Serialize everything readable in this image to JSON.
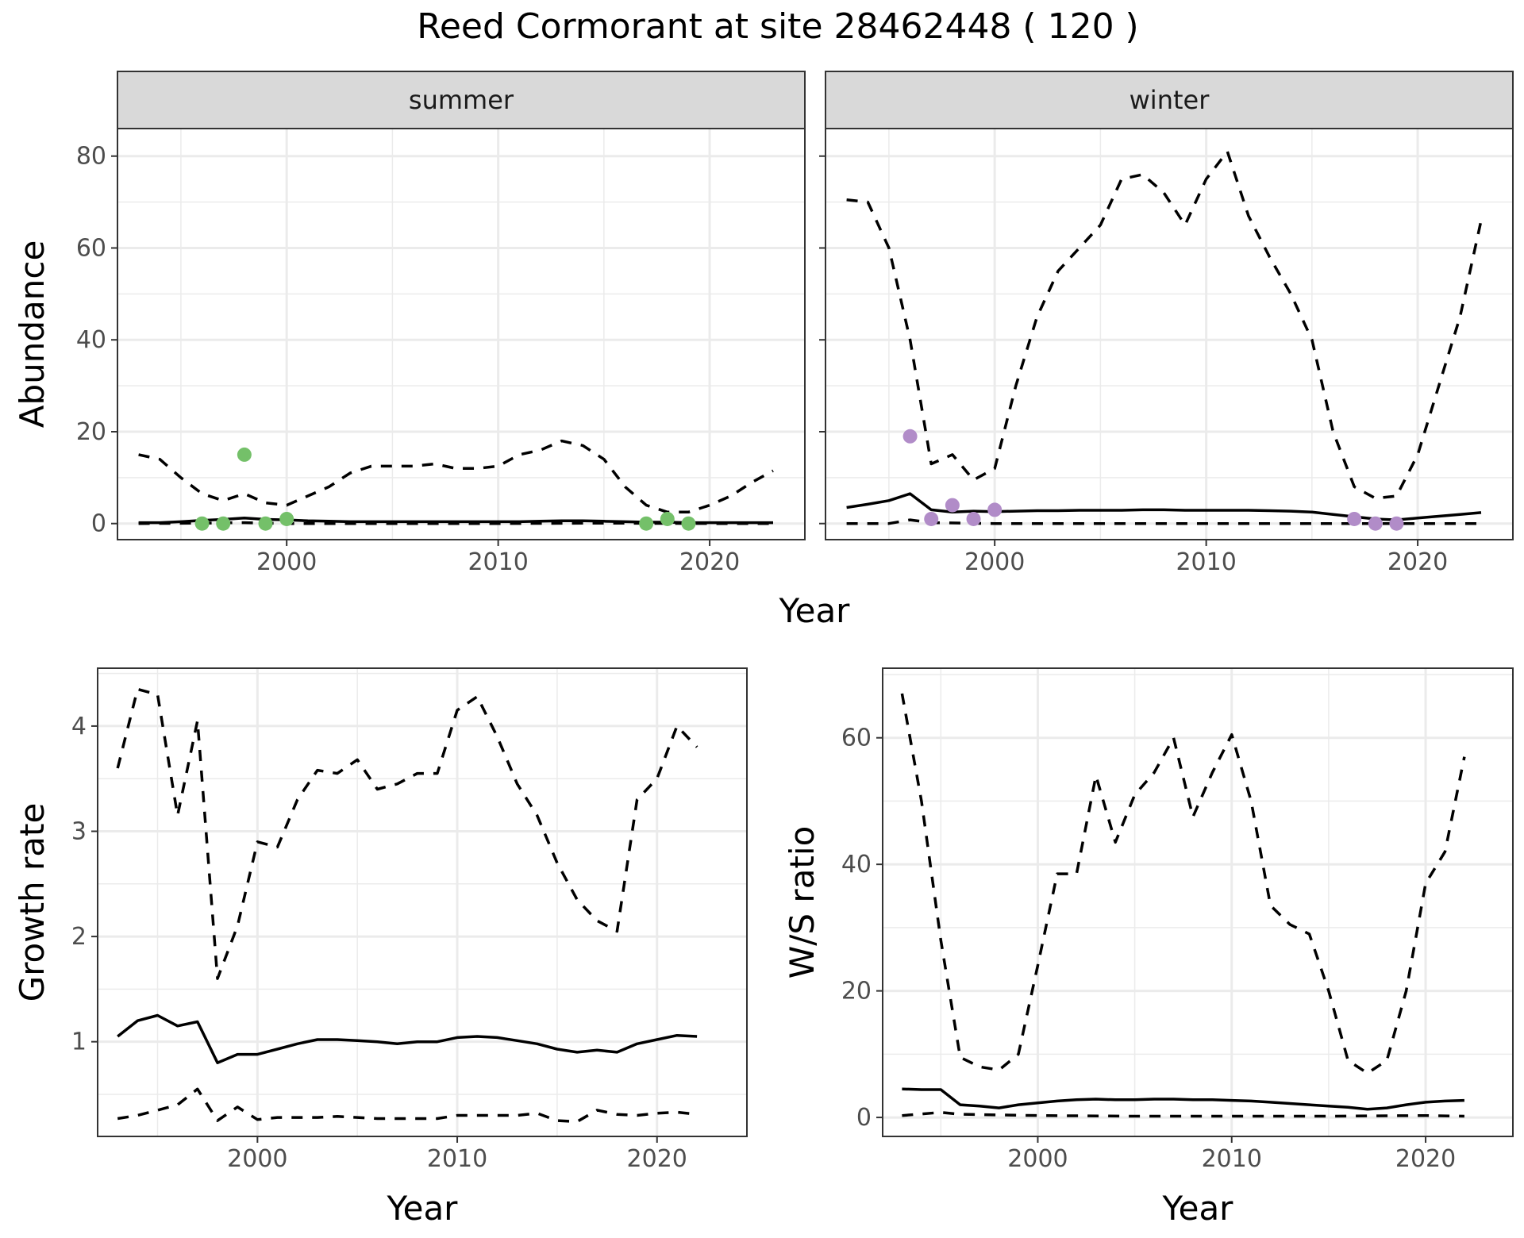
{
  "title": "Reed Cormorant at site 28462448 ( 120 )",
  "colors": {
    "summer_points": "#74c069",
    "winter_points": "#b18cc8",
    "lines": "#000000"
  },
  "chart_data": [
    {
      "type": "line",
      "facet": "summer",
      "xlabel": "Year",
      "ylabel": "Abundance",
      "xlim": [
        1992,
        2024.5
      ],
      "ylim": [
        -3.5,
        86
      ],
      "xticks": [
        2000,
        2010,
        2020
      ],
      "yticks": [
        0,
        20,
        40,
        60,
        80
      ],
      "grid": true,
      "series": [
        {
          "style": "solid",
          "x": [
            1993,
            1994,
            1995,
            1996,
            1997,
            1998,
            1999,
            2000,
            2001,
            2002,
            2003,
            2004,
            2005,
            2006,
            2007,
            2008,
            2009,
            2010,
            2011,
            2012,
            2013,
            2014,
            2015,
            2016,
            2017,
            2018,
            2019,
            2020,
            2021,
            2022,
            2023
          ],
          "y": [
            0.2,
            0.2,
            0.4,
            0.7,
            0.9,
            1.2,
            0.9,
            0.8,
            0.6,
            0.5,
            0.4,
            0.4,
            0.4,
            0.4,
            0.4,
            0.4,
            0.4,
            0.4,
            0.4,
            0.5,
            0.6,
            0.6,
            0.5,
            0.4,
            0.3,
            0.3,
            0.2,
            0.2,
            0.2,
            0.2,
            0.2
          ]
        },
        {
          "style": "dashed",
          "x": [
            1993,
            1994,
            1995,
            1996,
            1997,
            1998,
            1999,
            2000,
            2001,
            2002,
            2003,
            2004,
            2005,
            2006,
            2007,
            2008,
            2009,
            2010,
            2011,
            2012,
            2013,
            2014,
            2015,
            2016,
            2017,
            2018,
            2019,
            2020,
            2021,
            2022,
            2023
          ],
          "y": [
            15,
            14,
            10,
            6.5,
            5,
            6.5,
            4.5,
            4,
            6,
            8,
            11,
            12.5,
            12.5,
            12.5,
            13,
            12,
            12,
            12.5,
            15,
            16,
            18,
            17,
            14,
            8,
            4,
            2.5,
            2.5,
            4,
            6,
            9,
            11.5
          ]
        },
        {
          "style": "dashed",
          "x": [
            1993,
            1996,
            1998,
            2000,
            2005,
            2010,
            2015,
            2020,
            2023
          ],
          "y": [
            0,
            0.1,
            0.2,
            0,
            0,
            0,
            0.1,
            0,
            0
          ]
        }
      ],
      "points": {
        "x": [
          1996,
          1997,
          1998,
          1999,
          2000,
          2017,
          2018,
          2019
        ],
        "y": [
          0,
          0,
          15,
          0,
          1,
          0,
          1,
          0
        ]
      }
    },
    {
      "type": "line",
      "facet": "winter",
      "xlabel": "Year",
      "ylabel": "Abundance",
      "xlim": [
        1992,
        2024.5
      ],
      "ylim": [
        -3.5,
        86
      ],
      "xticks": [
        2000,
        2010,
        2020
      ],
      "yticks": [
        0,
        20,
        40,
        60,
        80
      ],
      "grid": true,
      "series": [
        {
          "style": "solid",
          "x": [
            1993,
            1994,
            1995,
            1996,
            1997,
            1998,
            1999,
            2000,
            2001,
            2002,
            2003,
            2004,
            2005,
            2006,
            2007,
            2008,
            2009,
            2010,
            2011,
            2012,
            2013,
            2014,
            2015,
            2016,
            2017,
            2018,
            2019,
            2020,
            2021,
            2022,
            2023
          ],
          "y": [
            3.5,
            4.2,
            5,
            6.5,
            3,
            2.5,
            2.7,
            2.6,
            2.7,
            2.8,
            2.8,
            2.9,
            2.9,
            2.9,
            3,
            3,
            2.9,
            2.9,
            2.9,
            2.9,
            2.8,
            2.7,
            2.5,
            2,
            1.5,
            1,
            0.8,
            1.2,
            1.6,
            2,
            2.4
          ]
        },
        {
          "style": "dashed",
          "x": [
            1993,
            1994,
            1995,
            1996,
            1997,
            1998,
            1999,
            2000,
            2001,
            2002,
            2003,
            2004,
            2005,
            2006,
            2007,
            2008,
            2009,
            2010,
            2011,
            2012,
            2013,
            2014,
            2015,
            2016,
            2017,
            2018,
            2019,
            2020,
            2021,
            2022,
            2023
          ],
          "y": [
            70.5,
            70,
            60,
            40,
            13,
            15,
            9.5,
            12,
            30,
            45,
            55,
            60,
            65,
            75,
            76,
            72,
            65,
            75,
            81,
            67,
            58,
            50,
            40,
            20,
            8,
            5.5,
            6,
            15,
            30,
            45,
            66
          ]
        },
        {
          "style": "dashed",
          "x": [
            1993,
            1995,
            1996,
            1997,
            2000,
            2010,
            2020,
            2023
          ],
          "y": [
            0,
            0,
            0.8,
            0.2,
            0,
            0,
            0,
            0
          ]
        }
      ],
      "points": {
        "x": [
          1996,
          1997,
          1998,
          1999,
          2000,
          2017,
          2018,
          2019
        ],
        "y": [
          19,
          1,
          4,
          1,
          3,
          1,
          0,
          0
        ]
      }
    },
    {
      "type": "line",
      "xlabel": "Year",
      "ylabel": "Growth rate",
      "xlim": [
        1992,
        2024.5
      ],
      "ylim": [
        0.1,
        4.55
      ],
      "xticks": [
        2000,
        2010,
        2020
      ],
      "yticks": [
        1,
        2,
        3,
        4
      ],
      "grid": true,
      "series": [
        {
          "style": "solid",
          "x": [
            1993,
            1994,
            1995,
            1996,
            1997,
            1998,
            1999,
            2000,
            2001,
            2002,
            2003,
            2004,
            2005,
            2006,
            2007,
            2008,
            2009,
            2010,
            2011,
            2012,
            2013,
            2014,
            2015,
            2016,
            2017,
            2018,
            2019,
            2020,
            2021,
            2022
          ],
          "y": [
            1.05,
            1.2,
            1.25,
            1.15,
            1.19,
            0.8,
            0.88,
            0.88,
            0.93,
            0.98,
            1.02,
            1.02,
            1.01,
            1,
            0.98,
            1,
            1,
            1.04,
            1.05,
            1.04,
            1.01,
            0.98,
            0.93,
            0.9,
            0.92,
            0.9,
            0.98,
            1.02,
            1.06,
            1.05
          ]
        },
        {
          "style": "dashed",
          "x": [
            1993,
            1994,
            1995,
            1996,
            1997,
            1998,
            1999,
            2000,
            2001,
            2002,
            2003,
            2004,
            2005,
            2006,
            2007,
            2008,
            2009,
            2010,
            2011,
            2012,
            2013,
            2014,
            2015,
            2016,
            2017,
            2018,
            2019,
            2020,
            2021,
            2022
          ],
          "y": [
            3.6,
            4.35,
            4.3,
            3.15,
            4.05,
            1.6,
            2.1,
            2.9,
            2.85,
            3.3,
            3.58,
            3.55,
            3.68,
            3.4,
            3.45,
            3.55,
            3.55,
            4.15,
            4.28,
            3.9,
            3.45,
            3.15,
            2.7,
            2.35,
            2.15,
            2.05,
            3.3,
            3.5,
            4,
            3.8
          ]
        },
        {
          "style": "dashed",
          "x": [
            1993,
            1994,
            1995,
            1996,
            1997,
            1998,
            1999,
            2000,
            2001,
            2002,
            2003,
            2004,
            2005,
            2006,
            2007,
            2008,
            2009,
            2010,
            2011,
            2012,
            2013,
            2014,
            2015,
            2016,
            2017,
            2018,
            2019,
            2020,
            2021,
            2022
          ],
          "y": [
            0.27,
            0.3,
            0.35,
            0.4,
            0.55,
            0.25,
            0.38,
            0.26,
            0.28,
            0.28,
            0.28,
            0.29,
            0.28,
            0.27,
            0.27,
            0.27,
            0.27,
            0.3,
            0.3,
            0.3,
            0.3,
            0.32,
            0.25,
            0.24,
            0.35,
            0.31,
            0.3,
            0.32,
            0.33,
            0.31
          ]
        }
      ]
    },
    {
      "type": "line",
      "xlabel": "Year",
      "ylabel": "W/S ratio",
      "xlim": [
        1992,
        2024.5
      ],
      "ylim": [
        -3,
        71
      ],
      "xticks": [
        2000,
        2010,
        2020
      ],
      "yticks": [
        0,
        20,
        40,
        60
      ],
      "grid": true,
      "series": [
        {
          "style": "solid",
          "x": [
            1993,
            1994,
            1995,
            1996,
            1997,
            1998,
            1999,
            2000,
            2001,
            2002,
            2003,
            2004,
            2005,
            2006,
            2007,
            2008,
            2009,
            2010,
            2011,
            2012,
            2013,
            2014,
            2015,
            2016,
            2017,
            2018,
            2019,
            2020,
            2021,
            2022
          ],
          "y": [
            4.5,
            4.4,
            4.4,
            2,
            1.8,
            1.5,
            2,
            2.3,
            2.6,
            2.8,
            2.9,
            2.8,
            2.8,
            2.9,
            2.9,
            2.8,
            2.8,
            2.7,
            2.6,
            2.4,
            2.2,
            2,
            1.8,
            1.6,
            1.3,
            1.5,
            2,
            2.4,
            2.6,
            2.7
          ]
        },
        {
          "style": "dashed",
          "x": [
            1993,
            1994,
            1995,
            1996,
            1997,
            1998,
            1999,
            2000,
            2001,
            2002,
            2003,
            2004,
            2005,
            2006,
            2007,
            2008,
            2009,
            2010,
            2011,
            2012,
            2013,
            2014,
            2015,
            2016,
            2017,
            2018,
            2019,
            2020,
            2021,
            2022
          ],
          "y": [
            67,
            50,
            28,
            9.5,
            8,
            7.5,
            10,
            24,
            38.5,
            38.5,
            54,
            43.5,
            51,
            54.5,
            60,
            47.5,
            54.5,
            60.5,
            50,
            33.5,
            30.5,
            29,
            20,
            9,
            7,
            9,
            20,
            37,
            42,
            57
          ]
        },
        {
          "style": "dashed",
          "x": [
            1993,
            1995,
            1996,
            2000,
            2005,
            2010,
            2015,
            2020,
            2022
          ],
          "y": [
            0.3,
            0.8,
            0.5,
            0.3,
            0.2,
            0.2,
            0.2,
            0.3,
            0.2
          ]
        }
      ]
    }
  ]
}
